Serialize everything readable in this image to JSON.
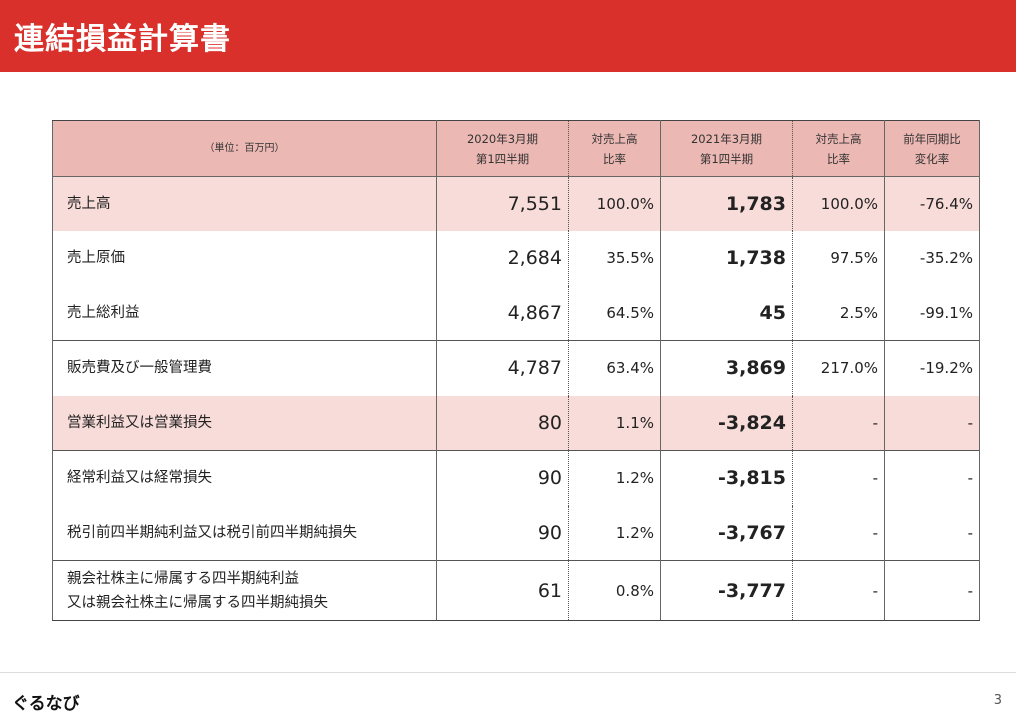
{
  "header": {
    "title": "連結損益計算書"
  },
  "table": {
    "unit_label": "（単位：百万円）",
    "columns": [
      {
        "line1": "2020年3月期",
        "line2": "第1四半期"
      },
      {
        "line1": "対売上高",
        "line2": "比率"
      },
      {
        "line1": "2021年3月期",
        "line2": "第1四半期"
      },
      {
        "line1": "対売上高",
        "line2": "比率"
      },
      {
        "line1": "前年同期比",
        "line2": "変化率"
      }
    ],
    "rows": [
      {
        "label": "売上高",
        "v2020": "7,551",
        "r2020": "100.0%",
        "v2021": "1,783",
        "r2021": "100.0%",
        "change": "-76.4%"
      },
      {
        "label": "売上原価",
        "v2020": "2,684",
        "r2020": "35.5%",
        "v2021": "1,738",
        "r2021": "97.5%",
        "change": "-35.2%"
      },
      {
        "label": "売上総利益",
        "v2020": "4,867",
        "r2020": "64.5%",
        "v2021": "45",
        "r2021": "2.5%",
        "change": "-99.1%"
      },
      {
        "label": "販売費及び一般管理費",
        "v2020": "4,787",
        "r2020": "63.4%",
        "v2021": "3,869",
        "r2021": "217.0%",
        "change": "-19.2%"
      },
      {
        "label": "営業利益又は営業損失",
        "v2020": "80",
        "r2020": "1.1%",
        "v2021": "-3,824",
        "r2021": "-",
        "change": "-"
      },
      {
        "label": "経常利益又は経常損失",
        "v2020": "90",
        "r2020": "1.2%",
        "v2021": "-3,815",
        "r2021": "-",
        "change": "-"
      },
      {
        "label": "税引前四半期純利益又は税引前四半期純損失",
        "v2020": "90",
        "r2020": "1.2%",
        "v2021": "-3,767",
        "r2021": "-",
        "change": "-"
      },
      {
        "label_line1": "親会社株主に帰属する四半期純利益",
        "label_line2": "又は親会社株主に帰属する四半期純損失",
        "v2020": "61",
        "r2020": "0.8%",
        "v2021": "-3,777",
        "r2021": "-",
        "change": "-"
      }
    ]
  },
  "footer": {
    "logo": "ぐるなび",
    "page_number": "3"
  },
  "colors": {
    "header_red": "#d9302c",
    "table_header_pink": "#ecb8b4",
    "row_highlight_pink": "#f8dcd9"
  }
}
